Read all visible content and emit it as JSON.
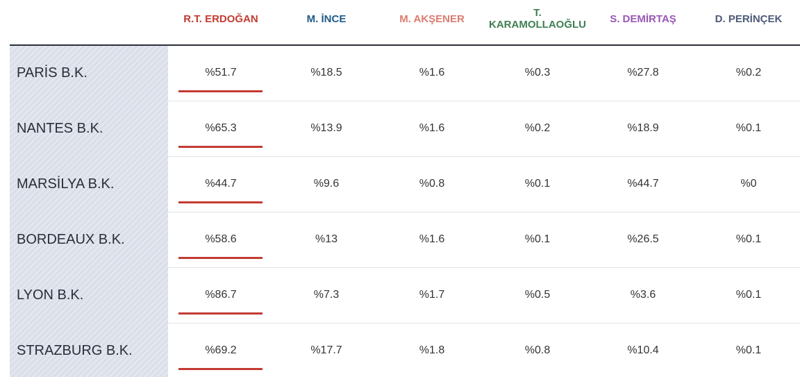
{
  "table": {
    "columns": [
      {
        "text": "R.T. ERDOĞAN",
        "color": "#c23b32"
      },
      {
        "text": "M. İNCE",
        "color": "#1f5a86"
      },
      {
        "text": "M. AKŞENER",
        "color": "#dc7b70"
      },
      {
        "text": "T. KARAMOLLAOĞLU",
        "color": "#3f7f52"
      },
      {
        "text": "S. DEMİRTAŞ",
        "color": "#9a58b5"
      },
      {
        "text": "D. PERİNÇEK",
        "color": "#4d5a78"
      }
    ],
    "rows": [
      {
        "label": "PARİS B.K.",
        "cells": [
          "%51.7",
          "%18.5",
          "%1.6",
          "%0.3",
          "%27.8",
          "%0.2"
        ]
      },
      {
        "label": "NANTES B.K.",
        "cells": [
          "%65.3",
          "%13.9",
          "%1.6",
          "%0.2",
          "%18.9",
          "%0.1"
        ]
      },
      {
        "label": "MARSİLYA B.K.",
        "cells": [
          "%44.7",
          "%9.6",
          "%0.8",
          "%0.1",
          "%44.7",
          "%0"
        ]
      },
      {
        "label": "BORDEAUX B.K.",
        "cells": [
          "%58.6",
          "%13",
          "%1.6",
          "%0.1",
          "%26.5",
          "%0.1"
        ]
      },
      {
        "label": "LYON B.K.",
        "cells": [
          "%86.7",
          "%7.3",
          "%1.7",
          "%0.5",
          "%3.6",
          "%0.1"
        ]
      },
      {
        "label": "STRAZBURG B.K.",
        "cells": [
          "%69.2",
          "%17.7",
          "%1.8",
          "%0.8",
          "%10.4",
          "%0.1"
        ]
      }
    ]
  }
}
